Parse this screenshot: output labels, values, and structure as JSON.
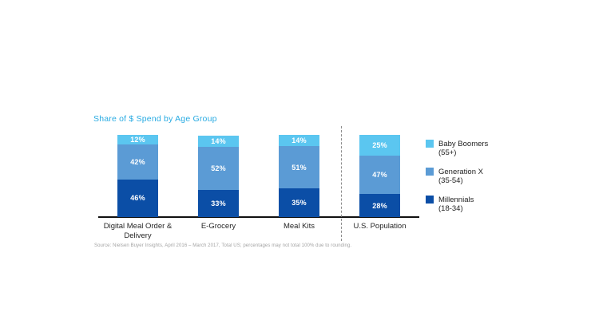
{
  "chart_data": {
    "type": "bar",
    "stacked": true,
    "title": "Share of $ Spend by Age Group",
    "title_color": "#29ABE2",
    "categories": [
      "Digital Meal Order & Delivery",
      "E-Grocery",
      "Meal Kits",
      "U.S. Population"
    ],
    "series": [
      {
        "name": "Millennials (18-34)",
        "color": "#0B4EA6",
        "values": [
          46,
          33,
          35,
          28
        ]
      },
      {
        "name": "Generation X (35-54)",
        "color": "#5B9BD5",
        "values": [
          42,
          52,
          51,
          47
        ]
      },
      {
        "name": "Baby Boomers (55+)",
        "color": "#5BC6F0",
        "values": [
          12,
          14,
          14,
          25
        ]
      }
    ],
    "stack_order": "first series at bottom",
    "value_label_format": "{value}%",
    "value_label_color": "#FFFFFF",
    "ylim": [
      0,
      100
    ],
    "grid": false,
    "axis_line_color": "#111111",
    "legend_position": "right",
    "separator_line_between": [
      "Meal Kits",
      "U.S. Population"
    ],
    "source_note": "Source: Nielsen Buyer Insights, April 2016 – March 2017, Total US; percentages may not total 100% due to rounding."
  },
  "legend": {
    "items": [
      {
        "label": "Baby Boomers",
        "sub": "(55+)",
        "color": "#5BC6F0"
      },
      {
        "label": "Generation X",
        "sub": "(35-54)",
        "color": "#5B9BD5"
      },
      {
        "label": "Millennials",
        "sub": "(18-34)",
        "color": "#0B4EA6"
      }
    ]
  }
}
